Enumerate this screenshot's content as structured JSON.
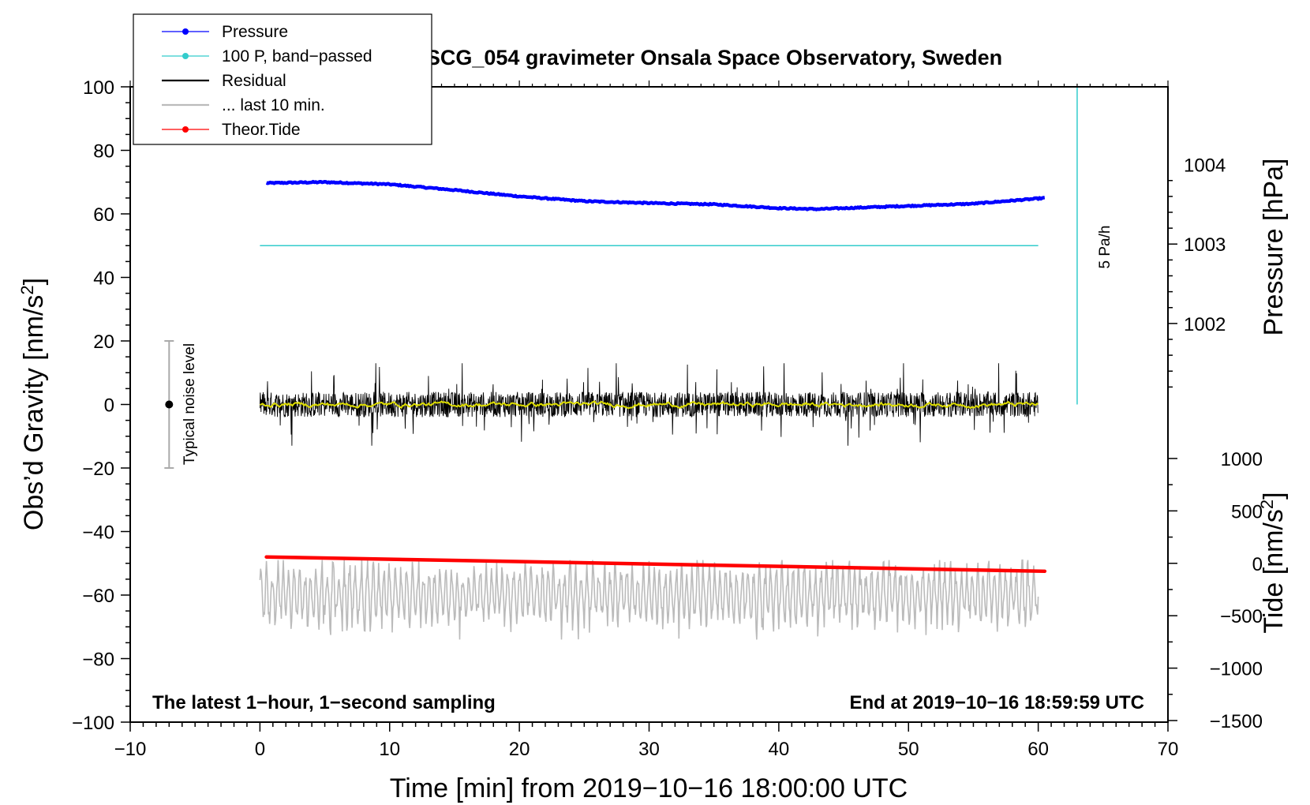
{
  "chart_data": {
    "type": "line",
    "title": "SCG_054 gravimeter Onsala Space Observatory, Sweden",
    "xlabel": "Time [min] from 2019−10−16 18:00:00 UTC",
    "ylabel_left": "Obs’d Gravity [nm/s",
    "ylabel_left_sup": "2",
    "ylabel_left_tail": "]",
    "ylabel_right_pressure": "Pressure [hPa]",
    "ylabel_right_tide": "Tide [nm/s",
    "ylabel_right_tide_sup": "2",
    "ylabel_right_tide_tail": "]",
    "xlim": [
      -10,
      70
    ],
    "ylim_left": [
      -100,
      100
    ],
    "x_ticks": [
      "−10",
      "0",
      "10",
      "20",
      "30",
      "40",
      "50",
      "60",
      "70"
    ],
    "y_ticks_left": [
      "−100",
      "−80",
      "−60",
      "−40",
      "−20",
      "0",
      "20",
      "40",
      "60",
      "80",
      "100"
    ],
    "pressure_ticks": [
      "1004",
      "1003",
      "1002"
    ],
    "tide_ticks": [
      "1000",
      "500",
      "0",
      "−500",
      "−1000",
      "−1500"
    ],
    "pressure_axis": {
      "value_1004_at_y": 75.5,
      "value_1003_at_y": 50.5,
      "value_1002_at_y": 25.5
    },
    "tide_axis": {
      "value_1000_at_y": -17,
      "value_0_at_y": -50,
      "value_minus1500_at_y": -100
    },
    "legend": [
      {
        "label": "Pressure",
        "color": "#0000ff",
        "marker": "dot"
      },
      {
        "label": "100 P, band−passed",
        "color": "#33cccc",
        "marker": "dot"
      },
      {
        "label": "Residual",
        "color": "#000000",
        "marker": "none"
      },
      {
        "label": "... last 10 min.",
        "color": "#bbbbbb",
        "marker": "none"
      },
      {
        "label": "Theor.Tide",
        "color": "#ff0000",
        "marker": "dot"
      }
    ],
    "series": [
      {
        "name": "Pressure",
        "color": "#0000ff",
        "x": [
          0.5,
          5,
          10,
          15,
          20,
          25,
          30,
          35,
          40,
          43,
          45,
          50,
          55,
          60.5
        ],
        "y": [
          69.7,
          70,
          69.3,
          67.5,
          65.5,
          64,
          63.4,
          63,
          61.8,
          61.5,
          61.8,
          62.5,
          63.2,
          65
        ]
      },
      {
        "name": "100 P, band−passed",
        "color": "#33cccc",
        "x": [
          0,
          60
        ],
        "y": [
          50,
          50
        ]
      },
      {
        "name": "Residual",
        "color": "#000000",
        "x_start": 0,
        "x_end": 60,
        "center": 0,
        "amplitude": 13
      },
      {
        "name": "Residual smoothed",
        "color": "#dddd00",
        "x_start": 0,
        "x_end": 60,
        "center": 0,
        "amplitude": 2
      },
      {
        "name": "... last 10 min.",
        "color": "#bbbbbb",
        "x_start": 0,
        "x_end": 60,
        "center": -60,
        "amplitude": 14
      },
      {
        "name": "Theor.Tide",
        "color": "#ff0000",
        "x": [
          0.5,
          60.5
        ],
        "y": [
          -48,
          -52.5
        ]
      }
    ],
    "noise_marker": {
      "label": "Typical noise level",
      "x": -7,
      "y": 0,
      "low": -20,
      "high": 20
    },
    "rate_scale": {
      "label": "5 Pa/h",
      "x": 63,
      "y_low": 0,
      "y_high": 100
    },
    "annotation_left": "The latest 1−hour, 1−second sampling",
    "annotation_right": "End at 2019−10−16 18:59:59 UTC"
  }
}
